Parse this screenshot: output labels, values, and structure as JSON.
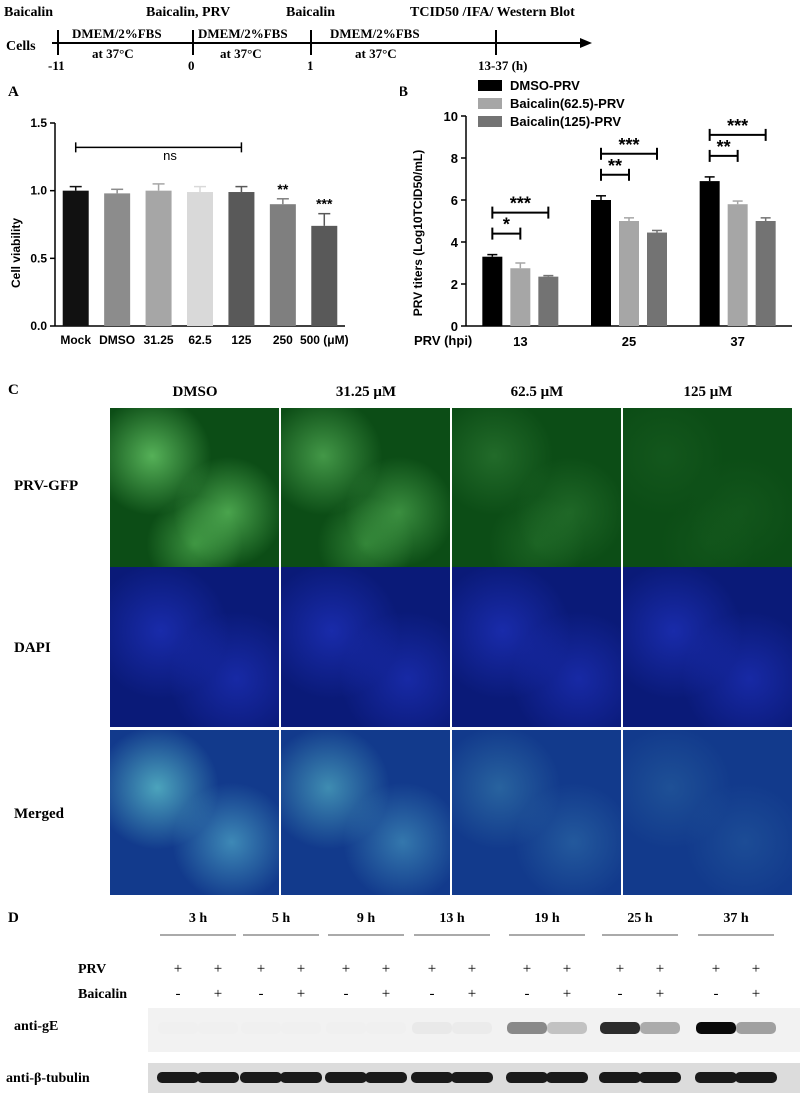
{
  "timeline": {
    "cells_label": "Cells",
    "events": [
      {
        "label": "Baicalin",
        "time": "-11"
      },
      {
        "label": "Baicalin, PRV",
        "time": "0"
      },
      {
        "label": "Baicalin",
        "time": "1"
      },
      {
        "label": "TCID50 /IFA/ Western Blot",
        "time": "13-37 (h)"
      }
    ],
    "media": [
      {
        "line1": "DMEM/2%FBS",
        "line2": "at 37°C"
      },
      {
        "line1": "DMEM/2%FBS",
        "line2": "at 37°C"
      },
      {
        "line1": "DMEM/2%FBS",
        "line2": "at 37°C"
      }
    ]
  },
  "panel_labels": {
    "a": "A",
    "b": "B",
    "c": "C",
    "d": "D"
  },
  "chart_data": [
    {
      "type": "bar",
      "ylabel": "Cell viability",
      "ylim": [
        0,
        1.5
      ],
      "yticks": [
        "0.0",
        "0.5",
        "1.0",
        "1.5"
      ],
      "categories": [
        "Mock",
        "DMSO",
        "31.25",
        "62.5",
        "125",
        "250",
        "500 (μM)"
      ],
      "values": [
        1.0,
        0.98,
        1.0,
        0.99,
        0.99,
        0.9,
        0.74
      ],
      "errors": [
        0.03,
        0.03,
        0.05,
        0.04,
        0.04,
        0.04,
        0.09
      ],
      "colors": [
        "#111111",
        "#8c8c8c",
        "#a6a6a6",
        "#d9d9d9",
        "#595959",
        "#7f7f7f",
        "#595959"
      ],
      "significance": [
        "",
        "",
        "",
        "",
        "",
        "**",
        "***"
      ],
      "bracket_label": "ns"
    },
    {
      "type": "bar",
      "ylabel": "PRV titers (Log10TCID50/mL)",
      "ylim": [
        0,
        10
      ],
      "yticks": [
        "0",
        "2",
        "4",
        "6",
        "8",
        "10"
      ],
      "xlabel": "PRV (hpi)",
      "categories": [
        "13",
        "25",
        "37"
      ],
      "series": [
        {
          "name": "DMSO-PRV",
          "color": "#000000",
          "values": [
            3.3,
            6.0,
            6.9
          ],
          "errors": [
            0.1,
            0.2,
            0.2
          ]
        },
        {
          "name": "Baicalin(62.5)-PRV",
          "color": "#a6a6a6",
          "values": [
            2.75,
            5.0,
            5.8
          ],
          "errors": [
            0.25,
            0.15,
            0.15
          ]
        },
        {
          "name": "Baicalin(125)-PRV",
          "color": "#737373",
          "values": [
            2.35,
            4.45,
            5.0
          ],
          "errors": [
            0.05,
            0.1,
            0.15
          ]
        }
      ],
      "significance": [
        {
          "group": "13",
          "pair": "62.5",
          "label": "*"
        },
        {
          "group": "13",
          "pair": "125",
          "label": "***"
        },
        {
          "group": "25",
          "pair": "62.5",
          "label": "**"
        },
        {
          "group": "25",
          "pair": "125",
          "label": "***"
        },
        {
          "group": "37",
          "pair": "62.5",
          "label": "**"
        },
        {
          "group": "37",
          "pair": "125",
          "label": "***"
        }
      ]
    }
  ],
  "panel_c": {
    "columns": [
      "DMSO",
      "31.25 μM",
      "62.5 μM",
      "125 μM"
    ],
    "rows": [
      "PRV-GFP",
      "DAPI",
      "Merged"
    ],
    "gfp_intensity": [
      1.0,
      0.75,
      0.3,
      0.1
    ]
  },
  "panel_d": {
    "timepoints": [
      "3 h",
      "5 h",
      "9 h",
      "13 h",
      "19 h",
      "25 h",
      "37 h"
    ],
    "prv_label": "PRV",
    "baicalin_label": "Baicalin",
    "prv_signs": [
      "+",
      "+"
    ],
    "baicalin_signs": [
      "-",
      "+"
    ],
    "blot1_label": "anti-gE",
    "blot2_label": "anti-β-tubulin",
    "ge_intensity": [
      0,
      0,
      0,
      0,
      0,
      0,
      0.03,
      0.02,
      0.45,
      0.2,
      0.85,
      0.3,
      1.0,
      0.35
    ]
  }
}
